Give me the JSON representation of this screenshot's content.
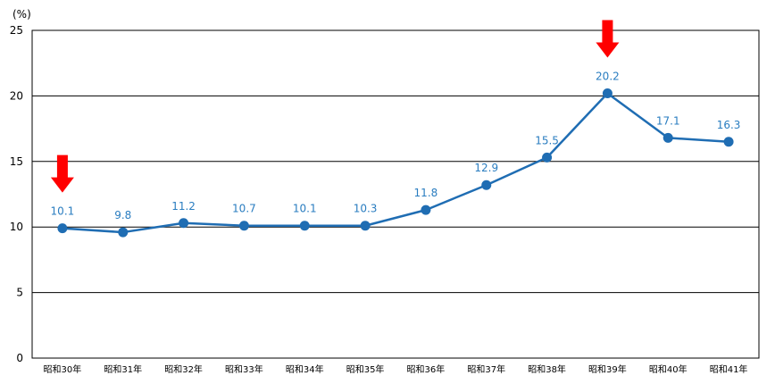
{
  "chart_data": {
    "type": "line",
    "unit_label": "(%)",
    "categories": [
      "昭和30年",
      "昭和31年",
      "昭和32年",
      "昭和33年",
      "昭和34年",
      "昭和35年",
      "昭和36年",
      "昭和37年",
      "昭和38年",
      "昭和39年",
      "昭和40年",
      "昭和41年"
    ],
    "series": [
      {
        "values": [
          10.1,
          9.8,
          11.2,
          10.7,
          10.1,
          10.3,
          11.8,
          12.9,
          15.5,
          20.2,
          17.1,
          16.3
        ],
        "plotted_values": [
          9.9,
          9.6,
          10.3,
          10.1,
          10.1,
          10.1,
          11.3,
          13.2,
          15.3,
          20.2,
          16.8,
          16.5
        ],
        "color": "#1f6db3"
      }
    ],
    "data_labels": [
      "10.1",
      "9.8",
      "11.2",
      "10.7",
      "10.1",
      "10.3",
      "11.8",
      "12.9",
      "15.5",
      "20.2",
      "17.1",
      "16.3"
    ],
    "yticks": [
      "0",
      "5",
      "10",
      "15",
      "20",
      "25"
    ],
    "ylim": [
      0,
      25
    ],
    "grid": true,
    "annotations": [
      {
        "type": "arrow-down",
        "category": "昭和30年",
        "color": "#ff0000"
      },
      {
        "type": "arrow-down",
        "category": "昭和39年",
        "color": "#ff0000"
      }
    ]
  }
}
